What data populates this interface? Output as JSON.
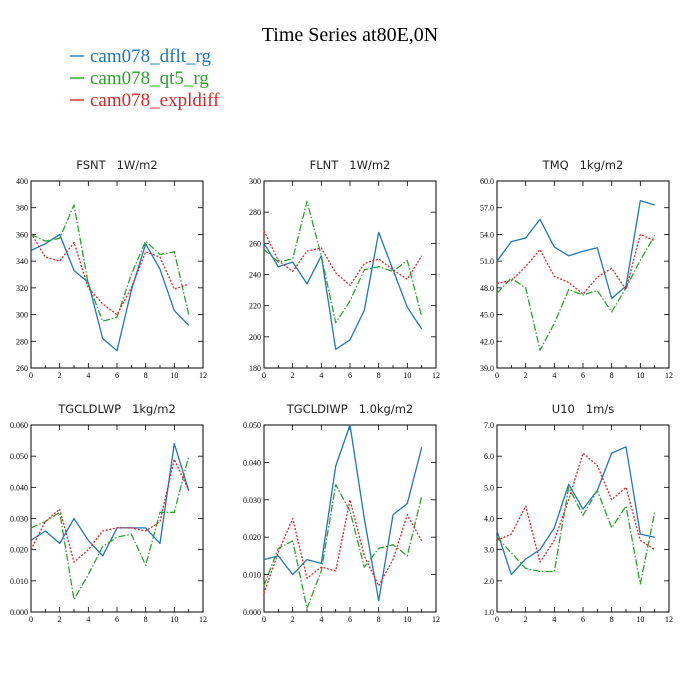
{
  "figure": {
    "title": "Time Series at80E,0N"
  },
  "legend": [
    {
      "label": "cam078_dflt_rg",
      "color": "#1f77b4",
      "dash": "solid"
    },
    {
      "label": "cam078_qt5_rg",
      "color": "#2ca02c",
      "dash": "dashdot"
    },
    {
      "label": "cam078_expldiff",
      "color": "#d62728",
      "dash": "dotted"
    }
  ],
  "chart_data": [
    {
      "type": "line",
      "title": "FSNT   1W/m2",
      "x": [
        0,
        1,
        2,
        3,
        4,
        5,
        6,
        7,
        8,
        9,
        10,
        11
      ],
      "xlim": [
        0,
        12
      ],
      "xticks": [
        "0",
        "2",
        "4",
        "6",
        "8",
        "10",
        "12"
      ],
      "ylim": [
        260,
        400
      ],
      "yticks": [
        "260",
        "280",
        "300",
        "320",
        "340",
        "360",
        "380",
        "400"
      ],
      "series": [
        {
          "name": "cam078_dflt_rg",
          "values": [
            348,
            353,
            360,
            333,
            324,
            282,
            273,
            318,
            353,
            334,
            303,
            292
          ]
        },
        {
          "name": "cam078_qt5_rg",
          "values": [
            360,
            355,
            357,
            382,
            323,
            295,
            298,
            330,
            355,
            345,
            347,
            300
          ]
        },
        {
          "name": "cam078_expldiff",
          "values": [
            361,
            343,
            340,
            354,
            320,
            308,
            300,
            320,
            347,
            343,
            319,
            323
          ]
        }
      ]
    },
    {
      "type": "line",
      "title": "FLNT   1W/m2",
      "x": [
        0,
        1,
        2,
        3,
        4,
        5,
        6,
        7,
        8,
        9,
        10,
        11
      ],
      "xlim": [
        0,
        12
      ],
      "xticks": [
        "0",
        "2",
        "4",
        "6",
        "8",
        "10",
        "12"
      ],
      "ylim": [
        180,
        300
      ],
      "yticks": [
        "180",
        "200",
        "220",
        "240",
        "260",
        "280",
        "300"
      ],
      "series": [
        {
          "name": "cam078_dflt_rg",
          "values": [
            260,
            245,
            248,
            234,
            252,
            192,
            198,
            217,
            267,
            243,
            219,
            205
          ]
        },
        {
          "name": "cam078_qt5_rg",
          "values": [
            256,
            248,
            250,
            287,
            252,
            209,
            223,
            243,
            245,
            242,
            249,
            213
          ]
        },
        {
          "name": "cam078_expldiff",
          "values": [
            268,
            249,
            242,
            255,
            257,
            241,
            233,
            247,
            250,
            243,
            237,
            252
          ]
        }
      ]
    },
    {
      "type": "line",
      "title": "TMQ   1kg/m2",
      "x": [
        0,
        1,
        2,
        3,
        4,
        5,
        6,
        7,
        8,
        9,
        10,
        11
      ],
      "xlim": [
        0,
        12
      ],
      "xticks": [
        "0",
        "2",
        "4",
        "6",
        "8",
        "10",
        "12"
      ],
      "ylim": [
        39.0,
        60.0
      ],
      "yticks": [
        "39.0",
        "42.0",
        "45.0",
        "48.0",
        "51.0",
        "54.0",
        "57.0",
        "60.0"
      ],
      "series": [
        {
          "name": "cam078_dflt_rg",
          "values": [
            51.0,
            53.2,
            53.6,
            55.7,
            52.6,
            51.6,
            52.1,
            52.5,
            46.8,
            48.2,
            57.8,
            57.3
          ]
        },
        {
          "name": "cam078_qt5_rg",
          "values": [
            47.4,
            49.1,
            48.0,
            41.0,
            44.0,
            47.8,
            47.2,
            47.7,
            45.3,
            48.0,
            51.1,
            53.9
          ]
        },
        {
          "name": "cam078_expldiff",
          "values": [
            48.5,
            48.8,
            50.4,
            52.3,
            49.3,
            48.6,
            47.3,
            49.2,
            50.2,
            47.8,
            54.0,
            53.3
          ]
        }
      ]
    },
    {
      "type": "line",
      "title": "TGCLDLWP   1kg/m2",
      "x": [
        0,
        1,
        2,
        3,
        4,
        5,
        6,
        7,
        8,
        9,
        10,
        11
      ],
      "xlim": [
        0,
        12
      ],
      "xticks": [
        "0",
        "2",
        "4",
        "6",
        "8",
        "10",
        "12"
      ],
      "ylim": [
        0.0,
        0.06
      ],
      "yticks": [
        "0.000",
        "0.010",
        "0.020",
        "0.030",
        "0.040",
        "0.050",
        "0.060"
      ],
      "series": [
        {
          "name": "cam078_dflt_rg",
          "values": [
            0.023,
            0.026,
            0.022,
            0.03,
            0.023,
            0.018,
            0.027,
            0.027,
            0.027,
            0.022,
            0.054,
            0.039
          ]
        },
        {
          "name": "cam078_qt5_rg",
          "values": [
            0.027,
            0.029,
            0.032,
            0.004,
            0.012,
            0.021,
            0.024,
            0.025,
            0.015,
            0.032,
            0.032,
            0.05
          ]
        },
        {
          "name": "cam078_expldiff",
          "values": [
            0.02,
            0.029,
            0.033,
            0.016,
            0.02,
            0.026,
            0.027,
            0.027,
            0.026,
            0.029,
            0.049,
            0.039
          ]
        }
      ]
    },
    {
      "type": "line",
      "title": "TGCLDIWP   1.0kg/m2",
      "x": [
        0,
        1,
        2,
        3,
        4,
        5,
        6,
        7,
        8,
        9,
        10,
        11
      ],
      "xlim": [
        0,
        12
      ],
      "xticks": [
        "0",
        "2",
        "4",
        "6",
        "8",
        "10",
        "12"
      ],
      "ylim": [
        0.0,
        0.05
      ],
      "yticks": [
        "0.000",
        "0.010",
        "0.020",
        "0.030",
        "0.040",
        "0.050"
      ],
      "series": [
        {
          "name": "cam078_dflt_rg",
          "values": [
            0.014,
            0.015,
            0.01,
            0.014,
            0.013,
            0.039,
            0.05,
            0.025,
            0.003,
            0.026,
            0.029,
            0.044
          ]
        },
        {
          "name": "cam078_qt5_rg",
          "values": [
            0.007,
            0.017,
            0.019,
            0.001,
            0.011,
            0.034,
            0.027,
            0.012,
            0.017,
            0.018,
            0.015,
            0.031
          ]
        },
        {
          "name": "cam078_expldiff",
          "values": [
            0.005,
            0.016,
            0.025,
            0.009,
            0.012,
            0.011,
            0.03,
            0.015,
            0.007,
            0.014,
            0.026,
            0.019
          ]
        }
      ]
    },
    {
      "type": "line",
      "title": "U10   1m/s",
      "x": [
        0,
        1,
        2,
        3,
        4,
        5,
        6,
        7,
        8,
        9,
        10,
        11
      ],
      "xlim": [
        0,
        12
      ],
      "xticks": [
        "0",
        "2",
        "4",
        "6",
        "8",
        "10",
        "12"
      ],
      "ylim": [
        1.0,
        7.0
      ],
      "yticks": [
        "1.0",
        "2.0",
        "3.0",
        "4.0",
        "5.0",
        "6.0",
        "7.0"
      ],
      "series": [
        {
          "name": "cam078_dflt_rg",
          "values": [
            3.6,
            2.2,
            2.7,
            3.0,
            3.7,
            5.1,
            4.3,
            4.9,
            6.1,
            6.3,
            3.5,
            3.4
          ]
        },
        {
          "name": "cam078_qt5_rg",
          "values": [
            3.4,
            2.9,
            2.4,
            2.3,
            2.3,
            5.0,
            4.1,
            4.9,
            3.7,
            4.4,
            1.9,
            4.2
          ]
        },
        {
          "name": "cam078_expldiff",
          "values": [
            3.3,
            3.5,
            4.4,
            2.6,
            3.3,
            4.6,
            6.1,
            5.7,
            4.6,
            5.0,
            3.3,
            3.0
          ]
        }
      ]
    }
  ]
}
